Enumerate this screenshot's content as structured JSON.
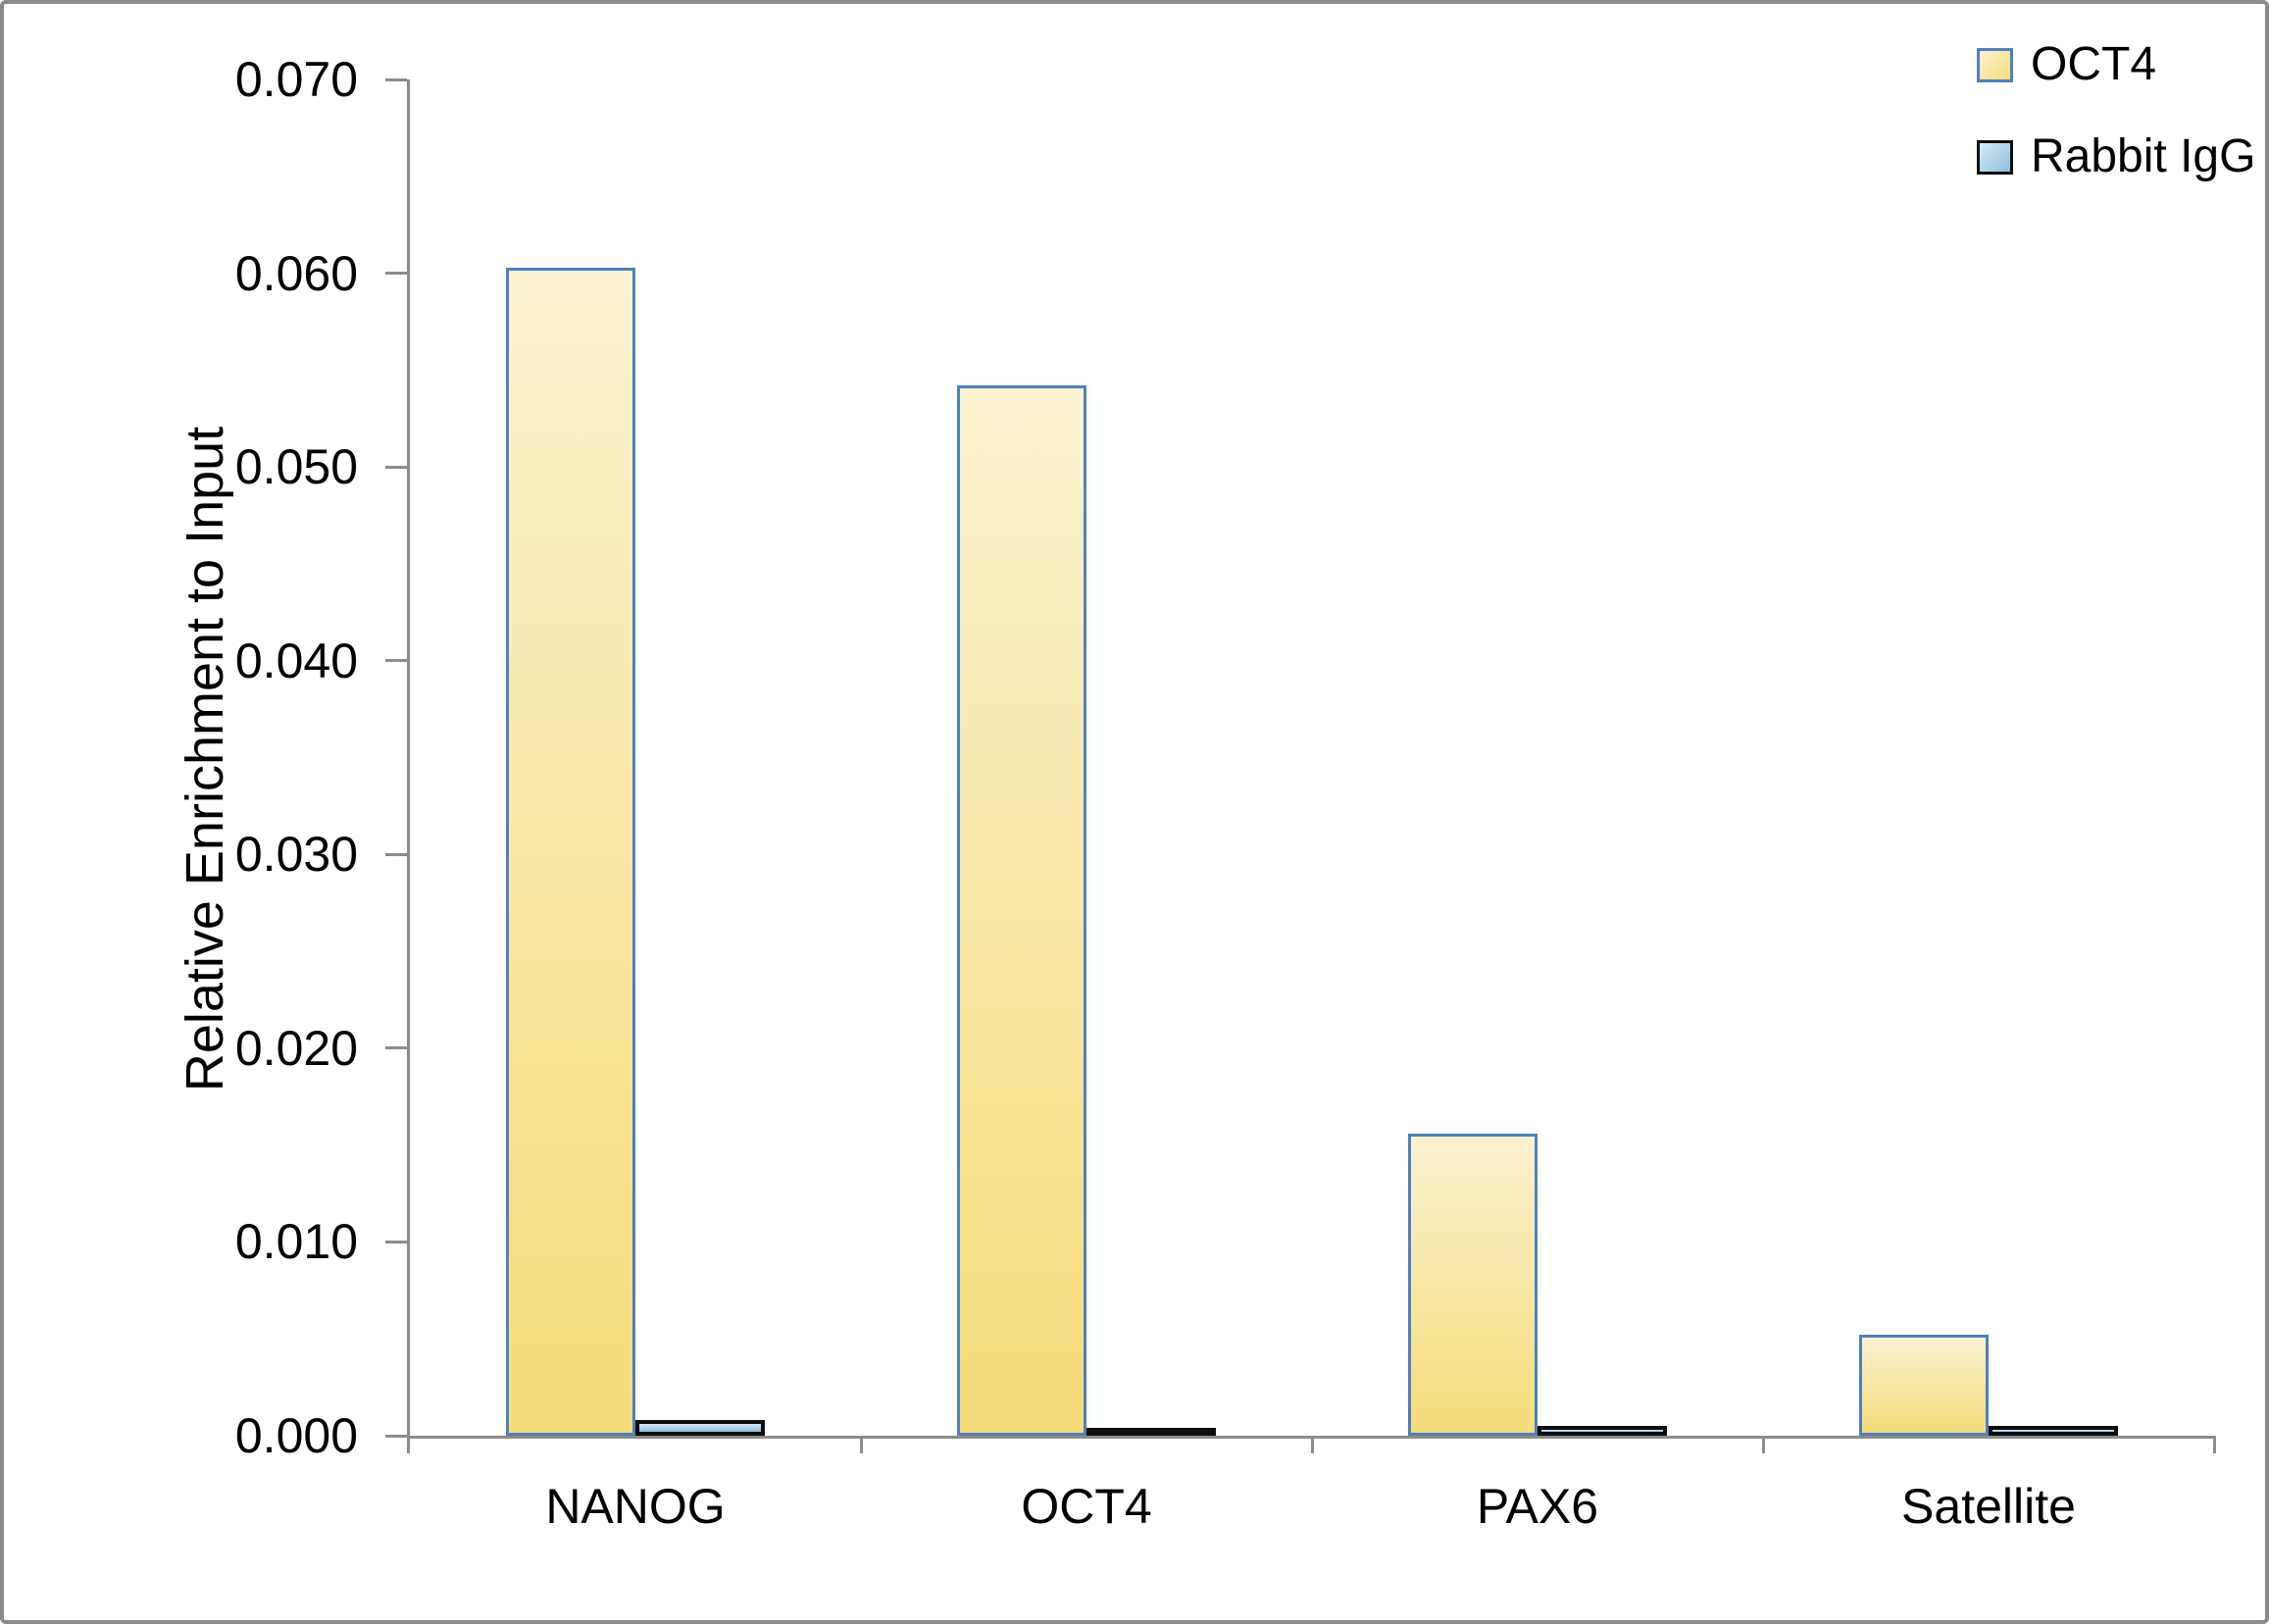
{
  "chart_data": {
    "type": "bar",
    "title": "",
    "ylabel": "Relative Enrichment to Input",
    "xlabel": "",
    "categories": [
      "NANOG",
      "OCT4",
      "PAX6",
      "Satellite"
    ],
    "series": [
      {
        "name": "OCT4",
        "values": [
          0.0603,
          0.0542,
          0.0156,
          0.0052
        ],
        "fill_top": "#FBF2D1",
        "fill_bottom": "#F6DC7A",
        "border": "#4E81BD"
      },
      {
        "name": "Rabbit IgG",
        "values": [
          0.0008,
          0.0004,
          0.0005,
          0.0005
        ],
        "fill_top": "#D6EAF6",
        "fill_bottom": "#8FBEDC",
        "border": "#0D0D0D"
      }
    ],
    "ylim": [
      0,
      0.07
    ],
    "ytick_labels": [
      "0.000",
      "0.010",
      "0.020",
      "0.030",
      "0.040",
      "0.050",
      "0.060",
      "0.070"
    ],
    "grid": false,
    "legend_position": "top-right",
    "axis_color": "#8C8C8C",
    "text_color": "#000000",
    "background_color": "#FFFFFF",
    "frame_border_color": "#8A8A8A"
  }
}
